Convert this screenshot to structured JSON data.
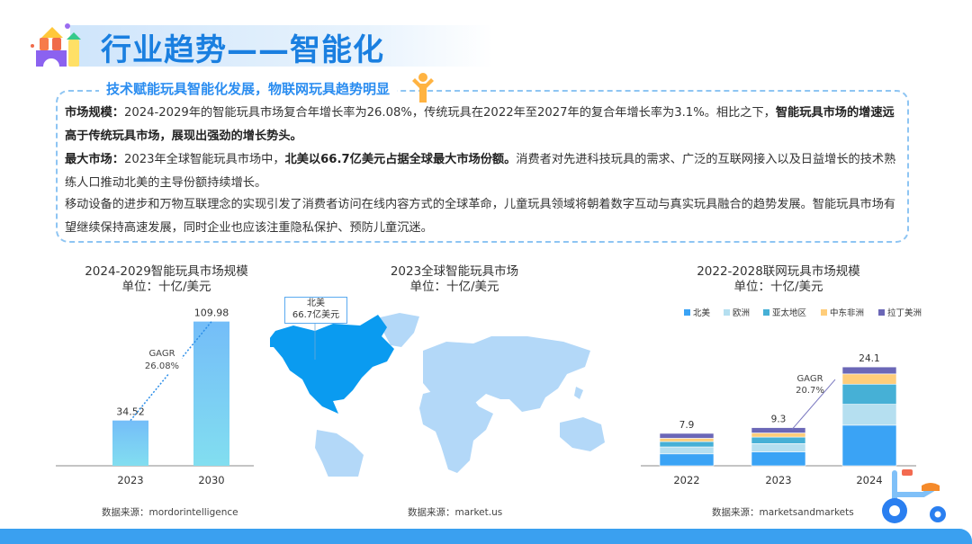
{
  "header": {
    "title": "行业趋势——智能化"
  },
  "summary": {
    "subtitle": "技术赋能玩具智能化发展，物联网玩具趋势明显",
    "p1_label": "市场规模：",
    "p1_text": "2024-2029年的智能玩具市场复合年增长率为26.08%，传统玩具在2022年至2027年的复合年增长率为3.1%。相比之下，",
    "p1_bold": "智能玩具市场的增速远高于传统玩具市场，展现出强劲的增长势头。",
    "p2_label": "最大市场：",
    "p2_text": "2023年全球智能玩具市场中，",
    "p2_bold": "北美以66.7亿美元占据全球最大市场份额。",
    "p2_tail": "消费者对先进科技玩具的需求、广泛的互联网接入以及日益增长的技术熟练人口推动北美的主导份额持续增长。",
    "p3": "移动设备的进步和万物互联理念的实现引发了消费者访问在线内容方式的全球革命，儿童玩具领域将朝着数字互动与真实玩具融合的趋势发展。智能玩具市场有望继续保持高速发展，同时企业也应该注重隐私保护、预防儿童沉迷。"
  },
  "colors": {
    "accent": "#1a7fe0",
    "north_america": "#0a9bf0",
    "other_regions": "#b3d8f8"
  },
  "chart_data": [
    {
      "type": "bar",
      "title": "2024-2029智能玩具市场规模",
      "subtitle": "单位：十亿/美元",
      "categories": [
        "2023",
        "2030"
      ],
      "values": [
        34.52,
        109.98
      ],
      "value_labels": [
        "34.52",
        "109.98"
      ],
      "annotation": {
        "line1": "GAGR",
        "line2": "26.08%"
      },
      "ylim": [
        0,
        120
      ],
      "grid": false,
      "source": "数据来源：mordorintelligence"
    },
    {
      "type": "map",
      "title": "2023全球智能玩具市场",
      "subtitle": "单位：十亿/美元",
      "highlight": {
        "region": "北美",
        "label": "66.7亿美元"
      },
      "source": "数据来源：market.us"
    },
    {
      "type": "bar",
      "stacked": true,
      "title": "2022-2028联网玩具市场规模",
      "subtitle": "单位：十亿/美元",
      "categories": [
        "2022",
        "2023",
        "2024"
      ],
      "series": [
        {
          "name": "北美",
          "color": "#3aa3f5",
          "values": [
            2.9,
            3.4,
            9.9
          ]
        },
        {
          "name": "欧洲",
          "color": "#b5dff0",
          "values": [
            1.7,
            2.0,
            5.1
          ]
        },
        {
          "name": "亚太地区",
          "color": "#46b0d6",
          "values": [
            1.3,
            1.6,
            4.9
          ]
        },
        {
          "name": "中东非洲",
          "color": "#ffcd7a",
          "values": [
            0.8,
            1.0,
            2.5
          ]
        },
        {
          "name": "拉丁美洲",
          "color": "#6b67b7",
          "values": [
            1.2,
            1.3,
            1.7
          ]
        }
      ],
      "totals": [
        "7.9",
        "9.3",
        "24.1"
      ],
      "annotation": {
        "line1": "GAGR",
        "line2": "20.7%"
      },
      "ylim": [
        0,
        25
      ],
      "legend": "top",
      "grid": false,
      "source": "数据来源：marketsandmarkets"
    }
  ]
}
